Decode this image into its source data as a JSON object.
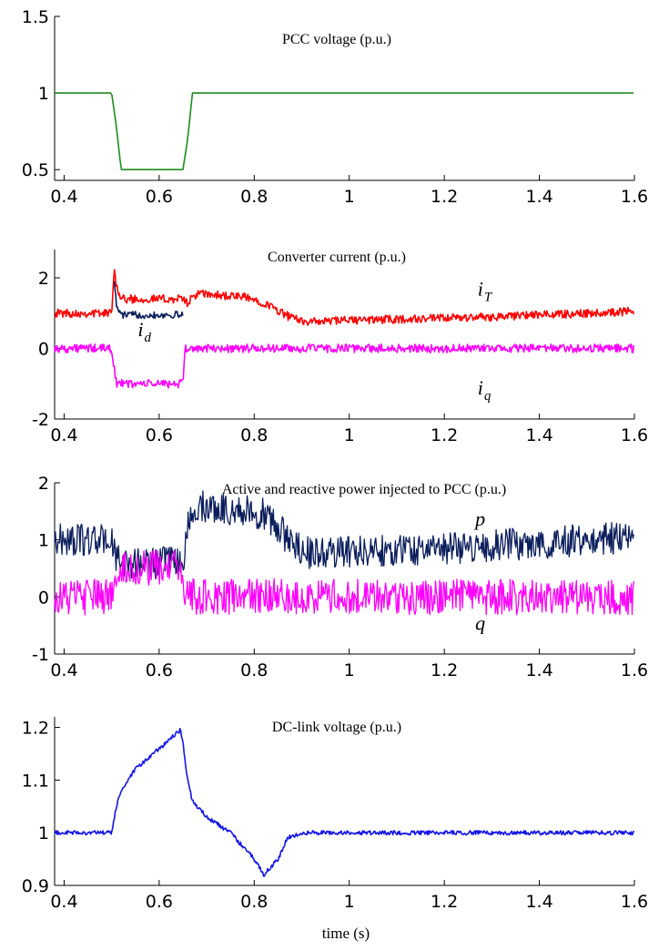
{
  "xlabel": "time (s)",
  "chart_data": [
    {
      "type": "line",
      "title": "PCC voltage  (p.u.)",
      "xlim": [
        0.38,
        1.6
      ],
      "ylim": [
        0.43,
        1.5
      ],
      "xticks": [
        "0.4",
        "0.6",
        "0.8",
        "1",
        "1.2",
        "1.4",
        "1.6"
      ],
      "yticks": [
        "0.5",
        "1",
        "1.5"
      ],
      "grid": false,
      "series": [
        {
          "color": "#1e8c1e",
          "noise": 0,
          "x": [
            0.38,
            0.5,
            0.51,
            0.52,
            0.65,
            0.66,
            0.67,
            1.6
          ],
          "y": [
            1.0,
            1.0,
            0.78,
            0.5,
            0.5,
            0.7,
            1.0,
            1.0
          ]
        }
      ],
      "annotations": []
    },
    {
      "type": "line",
      "title": "Converter current  (p.u.)",
      "xlim": [
        0.38,
        1.6
      ],
      "ylim": [
        -2,
        2.8
      ],
      "xticks": [
        "0.4",
        "0.6",
        "0.8",
        "1",
        "1.2",
        "1.4",
        "1.6"
      ],
      "yticks": [
        "-2",
        "0",
        "2"
      ],
      "grid": false,
      "series": [
        {
          "color": "#ff0000",
          "noise": 0.12,
          "x": [
            0.38,
            0.5,
            0.505,
            0.51,
            0.52,
            0.65,
            0.66,
            0.68,
            0.78,
            0.82,
            0.88,
            0.92,
            1.0,
            1.2,
            1.4,
            1.6
          ],
          "y": [
            1.0,
            1.0,
            2.3,
            1.8,
            1.4,
            1.4,
            1.3,
            1.55,
            1.45,
            1.3,
            0.85,
            0.75,
            0.8,
            0.85,
            0.95,
            1.05
          ]
        },
        {
          "color": "#0a1e5c",
          "noise": 0.1,
          "x": [
            0.505,
            0.51,
            0.52,
            0.65
          ],
          "y": [
            2.0,
            1.2,
            0.95,
            0.95
          ]
        },
        {
          "color": "#ff00ff",
          "noise": 0.12,
          "x": [
            0.38,
            0.5,
            0.51,
            0.65,
            0.655,
            1.6
          ],
          "y": [
            0.0,
            0.0,
            -1.0,
            -1.0,
            0.0,
            0.0
          ]
        }
      ],
      "annotations": [
        {
          "text": "i",
          "sub": "T",
          "x": 1.27,
          "y": 1.5
        },
        {
          "text": "i",
          "sub": "d",
          "x": 0.555,
          "y": 0.35
        },
        {
          "text": "i",
          "sub": "q",
          "x": 1.27,
          "y": -1.3
        }
      ]
    },
    {
      "type": "line",
      "title": "Active and reactive power injected to PCC  (p.u.)",
      "xlim": [
        0.38,
        1.6
      ],
      "ylim": [
        -1,
        2
      ],
      "xticks": [
        "0.4",
        "0.6",
        "0.8",
        "1",
        "1.2",
        "1.4",
        "1.6"
      ],
      "yticks": [
        "-1",
        "0",
        "1",
        "2"
      ],
      "grid": false,
      "series": [
        {
          "color": "#0a1e5c",
          "noise": 0.28,
          "x": [
            0.38,
            0.5,
            0.51,
            0.52,
            0.65,
            0.66,
            0.68,
            0.78,
            0.82,
            0.88,
            0.92,
            1.0,
            1.2,
            1.4,
            1.6
          ],
          "y": [
            1.0,
            1.0,
            0.65,
            0.6,
            0.6,
            1.2,
            1.6,
            1.5,
            1.45,
            0.95,
            0.75,
            0.8,
            0.85,
            0.95,
            1.05
          ]
        },
        {
          "color": "#ff00ff",
          "noise": 0.32,
          "x": [
            0.38,
            0.5,
            0.51,
            0.65,
            0.655,
            1.6
          ],
          "y": [
            0.0,
            0.0,
            0.5,
            0.5,
            0.0,
            0.0
          ]
        }
      ],
      "annotations": [
        {
          "text": "p",
          "sub": "",
          "x": 1.265,
          "y": 1.25
        },
        {
          "text": "q",
          "sub": "",
          "x": 1.265,
          "y": -0.58
        }
      ]
    },
    {
      "type": "line",
      "title": "DC-link voltage  (p.u.)",
      "xlim": [
        0.38,
        1.6
      ],
      "ylim": [
        0.9,
        1.22
      ],
      "xticks": [
        "0.4",
        "0.6",
        "0.8",
        "1",
        "1.2",
        "1.4",
        "1.6"
      ],
      "yticks": [
        "0.9",
        "1",
        "1.1",
        "1.2"
      ],
      "grid": false,
      "series": [
        {
          "color": "#1414e6",
          "noise": 0.004,
          "x": [
            0.38,
            0.5,
            0.51,
            0.52,
            0.55,
            0.6,
            0.645,
            0.65,
            0.66,
            0.67,
            0.7,
            0.75,
            0.8,
            0.82,
            0.85,
            0.87,
            0.9,
            1.0,
            1.2,
            1.4,
            1.6
          ],
          "y": [
            1.0,
            1.0,
            1.05,
            1.08,
            1.12,
            1.16,
            1.195,
            1.17,
            1.1,
            1.06,
            1.03,
            1.0,
            0.95,
            0.92,
            0.95,
            0.99,
            1.0,
            1.0,
            1.0,
            1.0,
            1.0
          ]
        }
      ],
      "annotations": []
    }
  ]
}
